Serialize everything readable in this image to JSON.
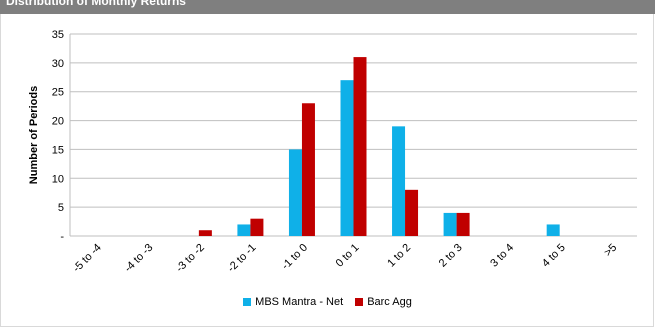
{
  "header": {
    "title": "Distribution of Monthly Returns"
  },
  "colors": {
    "series1": "#0fb0e8",
    "series2": "#c00000",
    "grid": "#bfbfbf"
  },
  "chart_data": {
    "type": "bar",
    "title": "",
    "xlabel": "",
    "ylabel": "Number of Periods",
    "ylim": [
      0,
      35
    ],
    "yticks": [
      0,
      5,
      10,
      15,
      20,
      25,
      30,
      35
    ],
    "ytick_labels": [
      "-",
      "5",
      "10",
      "15",
      "20",
      "25",
      "30",
      "35"
    ],
    "grid": true,
    "legend_position": "bottom",
    "categories": [
      "-5 to -4",
      "-4 to -3",
      "-3 to -2",
      "-2 to -1",
      "-1 to 0",
      "0 to 1",
      "1 to 2",
      "2 to 3",
      "3 to 4",
      "4 to 5",
      ">5"
    ],
    "series": [
      {
        "name": "MBS Mantra - Net",
        "values": [
          0,
          0,
          0,
          2,
          15,
          27,
          19,
          4,
          0,
          2,
          0
        ]
      },
      {
        "name": "Barc Agg",
        "values": [
          0,
          0,
          1,
          3,
          23,
          31,
          8,
          4,
          0,
          0,
          0
        ]
      }
    ]
  }
}
